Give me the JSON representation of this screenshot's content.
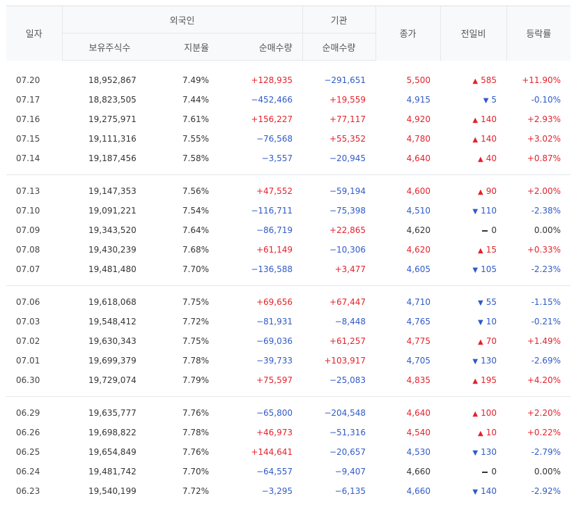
{
  "header": {
    "date": "일자",
    "foreign": "외국인",
    "institution": "기관",
    "close": "종가",
    "change": "전일비",
    "rate": "등락률",
    "holdings": "보유주식수",
    "share_ratio": "지분율",
    "foreign_net": "순매수량",
    "inst_net": "순매수량"
  },
  "colors": {
    "up": "#e4212b",
    "down": "#2f5ac7",
    "flat": "#333333"
  },
  "icons": {
    "up": "triangle-up-icon",
    "down": "triangle-down-icon",
    "flat": "dash-icon"
  },
  "groups": [
    [
      {
        "date": "07.20",
        "holdings": "18,952,867",
        "ratio": "7.49%",
        "foreign": "+128,935",
        "inst": "−291,651",
        "close": "5,500",
        "change": "585",
        "dir": "up",
        "rate": "+11.90%"
      },
      {
        "date": "07.17",
        "holdings": "18,823,505",
        "ratio": "7.44%",
        "foreign": "−452,466",
        "inst": "+19,559",
        "close": "4,915",
        "change": "5",
        "dir": "down",
        "rate": "-0.10%"
      },
      {
        "date": "07.16",
        "holdings": "19,275,971",
        "ratio": "7.61%",
        "foreign": "+156,227",
        "inst": "+77,117",
        "close": "4,920",
        "change": "140",
        "dir": "up",
        "rate": "+2.93%"
      },
      {
        "date": "07.15",
        "holdings": "19,111,316",
        "ratio": "7.55%",
        "foreign": "−76,568",
        "inst": "+55,352",
        "close": "4,780",
        "change": "140",
        "dir": "up",
        "rate": "+3.02%"
      },
      {
        "date": "07.14",
        "holdings": "19,187,456",
        "ratio": "7.58%",
        "foreign": "−3,557",
        "inst": "−20,945",
        "close": "4,640",
        "change": "40",
        "dir": "up",
        "rate": "+0.87%"
      }
    ],
    [
      {
        "date": "07.13",
        "holdings": "19,147,353",
        "ratio": "7.56%",
        "foreign": "+47,552",
        "inst": "−59,194",
        "close": "4,600",
        "change": "90",
        "dir": "up",
        "rate": "+2.00%"
      },
      {
        "date": "07.10",
        "holdings": "19,091,221",
        "ratio": "7.54%",
        "foreign": "−116,711",
        "inst": "−75,398",
        "close": "4,510",
        "change": "110",
        "dir": "down",
        "rate": "-2.38%"
      },
      {
        "date": "07.09",
        "holdings": "19,343,520",
        "ratio": "7.64%",
        "foreign": "−86,719",
        "inst": "+22,865",
        "close": "4,620",
        "change": "0",
        "dir": "flat",
        "rate": "0.00%"
      },
      {
        "date": "07.08",
        "holdings": "19,430,239",
        "ratio": "7.68%",
        "foreign": "+61,149",
        "inst": "−10,306",
        "close": "4,620",
        "change": "15",
        "dir": "up",
        "rate": "+0.33%"
      },
      {
        "date": "07.07",
        "holdings": "19,481,480",
        "ratio": "7.70%",
        "foreign": "−136,588",
        "inst": "+3,477",
        "close": "4,605",
        "change": "105",
        "dir": "down",
        "rate": "-2.23%"
      }
    ],
    [
      {
        "date": "07.06",
        "holdings": "19,618,068",
        "ratio": "7.75%",
        "foreign": "+69,656",
        "inst": "+67,447",
        "close": "4,710",
        "change": "55",
        "dir": "down",
        "rate": "-1.15%"
      },
      {
        "date": "07.03",
        "holdings": "19,548,412",
        "ratio": "7.72%",
        "foreign": "−81,931",
        "inst": "−8,448",
        "close": "4,765",
        "change": "10",
        "dir": "down",
        "rate": "-0.21%"
      },
      {
        "date": "07.02",
        "holdings": "19,630,343",
        "ratio": "7.75%",
        "foreign": "−69,036",
        "inst": "+61,257",
        "close": "4,775",
        "change": "70",
        "dir": "up",
        "rate": "+1.49%"
      },
      {
        "date": "07.01",
        "holdings": "19,699,379",
        "ratio": "7.78%",
        "foreign": "−39,733",
        "inst": "+103,917",
        "close": "4,705",
        "change": "130",
        "dir": "down",
        "rate": "-2.69%"
      },
      {
        "date": "06.30",
        "holdings": "19,729,074",
        "ratio": "7.79%",
        "foreign": "+75,597",
        "inst": "−25,083",
        "close": "4,835",
        "change": "195",
        "dir": "up",
        "rate": "+4.20%"
      }
    ],
    [
      {
        "date": "06.29",
        "holdings": "19,635,777",
        "ratio": "7.76%",
        "foreign": "−65,800",
        "inst": "−204,548",
        "close": "4,640",
        "change": "100",
        "dir": "up",
        "rate": "+2.20%"
      },
      {
        "date": "06.26",
        "holdings": "19,698,822",
        "ratio": "7.78%",
        "foreign": "+46,973",
        "inst": "−51,316",
        "close": "4,540",
        "change": "10",
        "dir": "up",
        "rate": "+0.22%"
      },
      {
        "date": "06.25",
        "holdings": "19,654,849",
        "ratio": "7.76%",
        "foreign": "+144,641",
        "inst": "−20,657",
        "close": "4,530",
        "change": "130",
        "dir": "down",
        "rate": "-2.79%"
      },
      {
        "date": "06.24",
        "holdings": "19,481,742",
        "ratio": "7.70%",
        "foreign": "−64,557",
        "inst": "−9,407",
        "close": "4,660",
        "change": "0",
        "dir": "flat",
        "rate": "0.00%"
      },
      {
        "date": "06.23",
        "holdings": "19,540,199",
        "ratio": "7.72%",
        "foreign": "−3,295",
        "inst": "−6,135",
        "close": "4,660",
        "change": "140",
        "dir": "down",
        "rate": "-2.92%"
      }
    ]
  ]
}
